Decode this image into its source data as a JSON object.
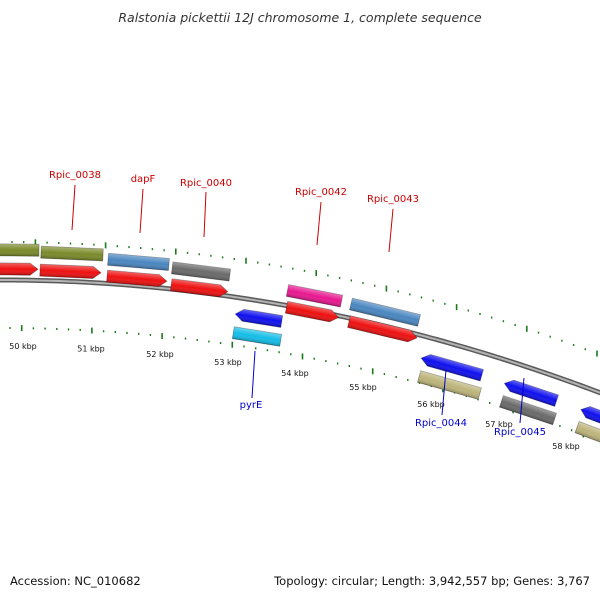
{
  "title": "Ralstonia pickettii 12J chromosome 1, complete sequence",
  "footer": {
    "accession": "Accession: NC_010682",
    "stats": "Topology: circular; Length: 3,942,557 bp; Genes: 3,767"
  },
  "colors": {
    "background": "#ffffff",
    "backbone": "#888888",
    "tick": "#1a7a1a",
    "label_forward": "#cc0000",
    "label_reverse": "#0000cc",
    "green": "#7a8a2a",
    "steelblue": "#4a86c0",
    "gray": "#6a6a6a",
    "red": "#ee1111",
    "magenta": "#e81890",
    "blue": "#1010ee",
    "cyan": "#14bde8",
    "khaki": "#bcb47a"
  },
  "kbp_labels": [
    "50 kbp",
    "51 kbp",
    "52 kbp",
    "53 kbp",
    "54 kbp",
    "55 kbp",
    "56 kbp",
    "57 kbp",
    "58 kbp"
  ],
  "gene_labels": {
    "Rpic_0038": "Rpic_0038",
    "dapF": "dapF",
    "Rpic_0040": "Rpic_0040",
    "Rpic_0042": "Rpic_0042",
    "Rpic_0043": "Rpic_0043",
    "pyrE": "pyrE",
    "Rpic_0044": "Rpic_0044",
    "Rpic_0045": "Rpic_0045"
  }
}
